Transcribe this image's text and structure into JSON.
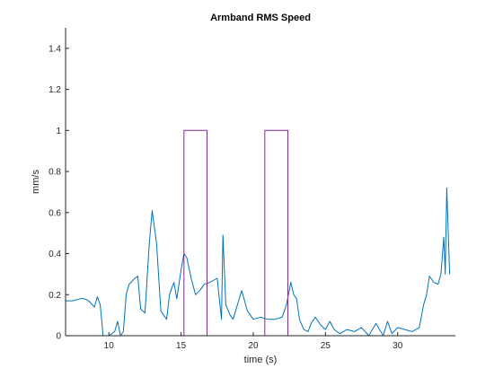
{
  "chart_data": {
    "type": "line",
    "title": "Armband RMS Speed",
    "xlabel": "time (s)",
    "ylabel": "mm/s",
    "xlim": [
      7,
      34
    ],
    "ylim": [
      0,
      1.5
    ],
    "xticks": [
      10,
      15,
      20,
      25,
      30
    ],
    "xtick_labels": [
      "10",
      "15",
      "20",
      "25",
      "30"
    ],
    "yticks": [
      0,
      0.2,
      0.4,
      0.6,
      0.8,
      1,
      1.2,
      1.4
    ],
    "ytick_labels": [
      "0",
      "0.2",
      "0.4",
      "0.6",
      "0.8",
      "1",
      "1.2",
      "1.4"
    ],
    "grid": false,
    "series": [
      {
        "color": "#0072bd",
        "x": [
          7.0,
          7.5,
          8.0,
          8.3,
          8.6,
          9.0,
          9.2,
          9.4,
          9.6,
          10.0,
          10.4,
          10.6,
          10.8,
          11.0,
          11.2,
          11.4,
          11.8,
          12.0,
          12.2,
          12.5,
          12.8,
          13.0,
          13.3,
          13.6,
          14.0,
          14.2,
          14.5,
          14.7,
          15.0,
          15.2,
          15.4,
          15.7,
          16.0,
          16.3,
          16.6,
          17.0,
          17.5,
          17.8,
          17.9,
          18.1,
          18.4,
          18.6,
          18.9,
          19.2,
          19.6,
          20.0,
          20.5,
          21.0,
          21.5,
          22.0,
          22.3,
          22.6,
          22.8,
          23.0,
          23.2,
          23.5,
          23.8,
          24.0,
          24.3,
          24.7,
          25.0,
          25.3,
          25.6,
          26.0,
          26.5,
          27.0,
          27.5,
          28.0,
          28.5,
          29.0,
          29.3,
          29.6,
          30.0,
          30.5,
          31.0,
          31.5,
          31.8,
          32.0,
          32.2,
          32.5,
          32.8,
          33.0,
          33.2,
          33.3,
          33.4,
          33.6
        ],
        "y": [
          0.17,
          0.17,
          0.18,
          0.18,
          0.17,
          0.14,
          0.19,
          0.15,
          0.0,
          0.0,
          0.02,
          0.07,
          0.0,
          0.02,
          0.2,
          0.25,
          0.28,
          0.29,
          0.13,
          0.11,
          0.45,
          0.61,
          0.45,
          0.12,
          0.08,
          0.2,
          0.26,
          0.18,
          0.32,
          0.4,
          0.38,
          0.28,
          0.2,
          0.22,
          0.25,
          0.26,
          0.28,
          0.08,
          0.49,
          0.15,
          0.1,
          0.08,
          0.15,
          0.22,
          0.12,
          0.08,
          0.09,
          0.08,
          0.08,
          0.09,
          0.15,
          0.26,
          0.2,
          0.18,
          0.08,
          0.03,
          0.02,
          0.06,
          0.09,
          0.05,
          0.03,
          0.07,
          0.03,
          0.01,
          0.03,
          0.02,
          0.04,
          0.0,
          0.06,
          0.0,
          0.07,
          0.01,
          0.04,
          0.03,
          0.02,
          0.04,
          0.15,
          0.2,
          0.29,
          0.26,
          0.25,
          0.3,
          0.48,
          0.3,
          0.72,
          0.3
        ]
      },
      {
        "color": "#7e2f8e",
        "x": [
          7.0,
          15.2,
          15.2,
          16.8,
          16.8,
          20.8,
          20.8,
          22.4,
          22.4,
          33.7
        ],
        "y": [
          0,
          0,
          1,
          1,
          0,
          0,
          1,
          1,
          0,
          0
        ]
      }
    ]
  }
}
